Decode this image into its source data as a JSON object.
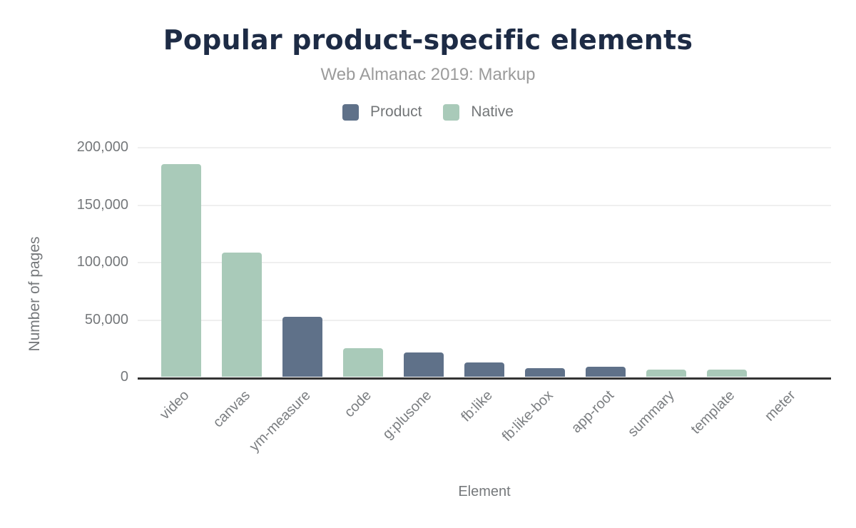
{
  "chart_data": {
    "type": "bar",
    "title": "Popular product-specific elements",
    "subtitle": "Web Almanac 2019: Markup",
    "xlabel": "Element",
    "ylabel": "Number of pages",
    "ylim": [
      0,
      200000
    ],
    "yticks": [
      0,
      50000,
      100000,
      150000,
      200000
    ],
    "ytick_labels": [
      "0",
      "50,000",
      "100,000",
      "150,000",
      "200,000"
    ],
    "grid": true,
    "legend_position": "top-center",
    "categories": [
      "video",
      "canvas",
      "ym-measure",
      "code",
      "g:plusone",
      "fb:like",
      "fb:like-box",
      "app-root",
      "summary",
      "template",
      "meter"
    ],
    "series": [
      {
        "name": "Product",
        "color": "#5f7189",
        "values": [
          null,
          null,
          52000,
          null,
          21000,
          12500,
          7400,
          8900,
          null,
          null,
          null
        ]
      },
      {
        "name": "Native",
        "color": "#a9cab9",
        "values": [
          185000,
          108000,
          null,
          25000,
          null,
          null,
          null,
          null,
          6200,
          6500,
          0
        ]
      }
    ]
  },
  "colors": {
    "title_navy": "#1d2b45",
    "subtitle_gray": "#9b9b9b",
    "axis_text_gray": "#75787b",
    "gridline_gray": "#efefef",
    "axis_line_dark": "#333333"
  }
}
